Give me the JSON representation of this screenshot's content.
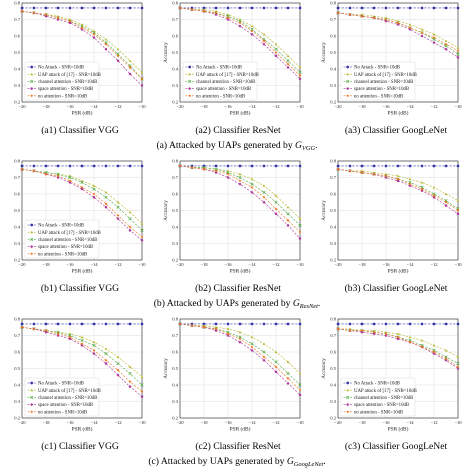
{
  "legend": [
    "No Attack - SNR=10dB",
    "UAP attack of [17] - SNR=10dB",
    "channel attention - SNR=10dB",
    "space attention - SNR=10dB",
    "no attention - SNR=10dB"
  ],
  "series_colors": [
    "#3333aa",
    "#b8b830",
    "#55aa44",
    "#aa3399",
    "#ee7722"
  ],
  "axes": {
    "xlabel": "PSR (dB)",
    "ylabel": "Accuracy",
    "xticks": [
      "−20",
      "−18",
      "−16",
      "−14",
      "−12",
      "−10"
    ],
    "yticks": [
      "0.8",
      "0.7",
      "0.6",
      "0.5",
      "0.4",
      "0.3",
      "0.2"
    ]
  },
  "rows": [
    {
      "caption_prefix": "(a) Attacked by UAPs generated by ",
      "caption_symbol": "G",
      "caption_sub": "VGG",
      "caption_suffix": "."
    },
    {
      "caption_prefix": "(b) Attacked by UAPs generated by ",
      "caption_symbol": "G",
      "caption_sub": "ResNet",
      "caption_suffix": "."
    },
    {
      "caption_prefix": "(c) Attacked by UAPs generated by ",
      "caption_symbol": "G",
      "caption_sub": "GoogLeNet",
      "caption_suffix": "."
    }
  ],
  "chart_data": [
    {
      "type": "line",
      "title": "(a1) Classifier VGG",
      "xlabel": "PSR (dB)",
      "ylabel": "",
      "xlim": [
        -20,
        -10
      ],
      "ylim": [
        0.2,
        0.8
      ],
      "show_legend": true,
      "x": [
        -20,
        -19,
        -18,
        -17,
        -16,
        -15,
        -14,
        -13,
        -12,
        -11,
        -10
      ],
      "series": [
        {
          "name": "No Attack - SNR=10dB",
          "values": [
            0.77,
            0.77,
            0.77,
            0.77,
            0.77,
            0.77,
            0.77,
            0.77,
            0.77,
            0.77,
            0.77
          ]
        },
        {
          "name": "UAP attack of [17] - SNR=10dB",
          "values": [
            0.75,
            0.74,
            0.73,
            0.72,
            0.7,
            0.67,
            0.63,
            0.58,
            0.52,
            0.45,
            0.38
          ]
        },
        {
          "name": "channel attention - SNR=10dB",
          "values": [
            0.75,
            0.74,
            0.73,
            0.71,
            0.69,
            0.66,
            0.62,
            0.56,
            0.49,
            0.42,
            0.34
          ]
        },
        {
          "name": "space attention - SNR=10dB",
          "values": [
            0.75,
            0.74,
            0.72,
            0.7,
            0.68,
            0.64,
            0.59,
            0.52,
            0.45,
            0.37,
            0.3
          ]
        },
        {
          "name": "no attention - SNR=10dB",
          "values": [
            0.75,
            0.74,
            0.73,
            0.71,
            0.69,
            0.65,
            0.61,
            0.55,
            0.48,
            0.41,
            0.34
          ]
        }
      ]
    },
    {
      "type": "line",
      "title": "(a2) Classifier ResNet",
      "xlabel": "PSR (dB)",
      "ylabel": "Accuracy",
      "xlim": [
        -20,
        -10
      ],
      "ylim": [
        0.2,
        0.8
      ],
      "show_legend": true,
      "x": [
        -20,
        -19,
        -18,
        -17,
        -16,
        -15,
        -14,
        -13,
        -12,
        -11,
        -10
      ],
      "series": [
        {
          "name": "No Attack - SNR=10dB",
          "values": [
            0.77,
            0.77,
            0.77,
            0.77,
            0.77,
            0.77,
            0.77,
            0.77,
            0.77,
            0.77,
            0.77
          ]
        },
        {
          "name": "UAP attack of [17] - SNR=10dB",
          "values": [
            0.77,
            0.76,
            0.76,
            0.75,
            0.73,
            0.7,
            0.66,
            0.61,
            0.55,
            0.48,
            0.41
          ]
        },
        {
          "name": "channel attention - SNR=10dB",
          "values": [
            0.77,
            0.76,
            0.75,
            0.74,
            0.72,
            0.69,
            0.64,
            0.58,
            0.52,
            0.45,
            0.38
          ]
        },
        {
          "name": "space attention - SNR=10dB",
          "values": [
            0.77,
            0.76,
            0.75,
            0.73,
            0.7,
            0.66,
            0.61,
            0.55,
            0.48,
            0.41,
            0.34
          ]
        },
        {
          "name": "no attention - SNR=10dB",
          "values": [
            0.77,
            0.76,
            0.75,
            0.74,
            0.71,
            0.68,
            0.63,
            0.57,
            0.5,
            0.43,
            0.36
          ]
        }
      ]
    },
    {
      "type": "line",
      "title": "(a3) Classifier GoogLeNet",
      "xlabel": "PSR (dB)",
      "ylabel": "Accuracy",
      "xlim": [
        -20,
        -10
      ],
      "ylim": [
        0.2,
        0.8
      ],
      "show_legend": true,
      "x": [
        -20,
        -19,
        -18,
        -17,
        -16,
        -15,
        -14,
        -13,
        -12,
        -11,
        -10
      ],
      "series": [
        {
          "name": "No Attack - SNR=10dB",
          "values": [
            0.77,
            0.77,
            0.77,
            0.77,
            0.77,
            0.77,
            0.77,
            0.77,
            0.77,
            0.77,
            0.77
          ]
        },
        {
          "name": "UAP attack of [17] - SNR=10dB",
          "values": [
            0.74,
            0.73,
            0.73,
            0.72,
            0.71,
            0.69,
            0.67,
            0.64,
            0.61,
            0.57,
            0.53
          ]
        },
        {
          "name": "channel attention - SNR=10dB",
          "values": [
            0.74,
            0.73,
            0.72,
            0.71,
            0.7,
            0.68,
            0.65,
            0.62,
            0.58,
            0.54,
            0.49
          ]
        },
        {
          "name": "space attention - SNR=10dB",
          "values": [
            0.74,
            0.73,
            0.72,
            0.71,
            0.69,
            0.67,
            0.64,
            0.6,
            0.56,
            0.52,
            0.47
          ]
        },
        {
          "name": "no attention - SNR=10dB",
          "values": [
            0.74,
            0.73,
            0.72,
            0.71,
            0.7,
            0.68,
            0.65,
            0.62,
            0.59,
            0.55,
            0.51
          ]
        }
      ]
    },
    {
      "type": "line",
      "title": "(b1) Classifier VGG",
      "xlabel": "PSR (dB)",
      "ylabel": "",
      "xlim": [
        -20,
        -10
      ],
      "ylim": [
        0.2,
        0.8
      ],
      "show_legend": true,
      "x": [
        -20,
        -19,
        -18,
        -17,
        -16,
        -15,
        -14,
        -13,
        -12,
        -11,
        -10
      ],
      "series": [
        {
          "name": "No Attack - SNR=10dB",
          "values": [
            0.77,
            0.77,
            0.77,
            0.77,
            0.77,
            0.77,
            0.77,
            0.77,
            0.77,
            0.77,
            0.77
          ]
        },
        {
          "name": "UAP attack of [17] - SNR=10dB",
          "values": [
            0.75,
            0.74,
            0.73,
            0.72,
            0.71,
            0.68,
            0.65,
            0.61,
            0.55,
            0.49,
            0.42
          ]
        },
        {
          "name": "channel attention - SNR=10dB",
          "values": [
            0.75,
            0.74,
            0.73,
            0.72,
            0.7,
            0.67,
            0.63,
            0.58,
            0.52,
            0.45,
            0.38
          ]
        },
        {
          "name": "space attention - SNR=10dB",
          "values": [
            0.75,
            0.74,
            0.72,
            0.7,
            0.67,
            0.63,
            0.58,
            0.52,
            0.45,
            0.38,
            0.32
          ]
        },
        {
          "name": "no attention - SNR=10dB",
          "values": [
            0.75,
            0.74,
            0.72,
            0.71,
            0.68,
            0.64,
            0.6,
            0.54,
            0.47,
            0.4,
            0.34
          ]
        }
      ]
    },
    {
      "type": "line",
      "title": "(b2) Classifier ResNet",
      "xlabel": "PSR (dB)",
      "ylabel": "Accuracy",
      "xlim": [
        -20,
        -10
      ],
      "ylim": [
        0.2,
        0.8
      ],
      "show_legend": false,
      "x": [
        -20,
        -19,
        -18,
        -17,
        -16,
        -15,
        -14,
        -13,
        -12,
        -11,
        -10
      ],
      "series": [
        {
          "name": "No Attack - SNR=10dB",
          "values": [
            0.77,
            0.77,
            0.77,
            0.77,
            0.77,
            0.77,
            0.77,
            0.77,
            0.77,
            0.77,
            0.77
          ]
        },
        {
          "name": "UAP attack of [17] - SNR=10dB",
          "values": [
            0.77,
            0.76,
            0.76,
            0.75,
            0.74,
            0.72,
            0.69,
            0.65,
            0.59,
            0.52,
            0.45
          ]
        },
        {
          "name": "channel attention - SNR=10dB",
          "values": [
            0.77,
            0.76,
            0.76,
            0.75,
            0.73,
            0.7,
            0.66,
            0.61,
            0.55,
            0.48,
            0.41
          ]
        },
        {
          "name": "space attention - SNR=10dB",
          "values": [
            0.77,
            0.76,
            0.75,
            0.73,
            0.7,
            0.66,
            0.61,
            0.55,
            0.48,
            0.41,
            0.33
          ]
        },
        {
          "name": "no attention - SNR=10dB",
          "values": [
            0.77,
            0.76,
            0.75,
            0.74,
            0.72,
            0.68,
            0.64,
            0.58,
            0.51,
            0.44,
            0.37
          ]
        }
      ]
    },
    {
      "type": "line",
      "title": "(b3) Classifier GoogLeNet",
      "xlabel": "PSR (dB)",
      "ylabel": "Accuracy",
      "xlim": [
        -20,
        -10
      ],
      "ylim": [
        0.2,
        0.8
      ],
      "show_legend": false,
      "x": [
        -20,
        -19,
        -18,
        -17,
        -16,
        -15,
        -14,
        -13,
        -12,
        -11,
        -10
      ],
      "series": [
        {
          "name": "No Attack - SNR=10dB",
          "values": [
            0.77,
            0.77,
            0.77,
            0.77,
            0.77,
            0.77,
            0.77,
            0.77,
            0.77,
            0.77,
            0.77
          ]
        },
        {
          "name": "UAP attack of [17] - SNR=10dB",
          "values": [
            0.75,
            0.74,
            0.74,
            0.73,
            0.72,
            0.71,
            0.69,
            0.67,
            0.64,
            0.6,
            0.56
          ]
        },
        {
          "name": "channel attention - SNR=10dB",
          "values": [
            0.75,
            0.74,
            0.73,
            0.72,
            0.71,
            0.69,
            0.67,
            0.64,
            0.6,
            0.56,
            0.51
          ]
        },
        {
          "name": "space attention - SNR=10dB",
          "values": [
            0.75,
            0.74,
            0.73,
            0.72,
            0.7,
            0.68,
            0.65,
            0.62,
            0.58,
            0.53,
            0.48
          ]
        },
        {
          "name": "no attention - SNR=10dB",
          "values": [
            0.75,
            0.74,
            0.73,
            0.72,
            0.71,
            0.69,
            0.66,
            0.63,
            0.59,
            0.55,
            0.5
          ]
        }
      ]
    },
    {
      "type": "line",
      "title": "(c1) Classifier VGG",
      "xlabel": "PSR (dB)",
      "ylabel": "",
      "xlim": [
        -20,
        -10
      ],
      "ylim": [
        0.2,
        0.8
      ],
      "show_legend": true,
      "x": [
        -20,
        -19,
        -18,
        -17,
        -16,
        -15,
        -14,
        -13,
        -12,
        -11,
        -10
      ],
      "series": [
        {
          "name": "No Attack - SNR=10dB",
          "values": [
            0.77,
            0.77,
            0.77,
            0.77,
            0.77,
            0.77,
            0.77,
            0.77,
            0.77,
            0.77,
            0.77
          ]
        },
        {
          "name": "UAP attack of [17] - SNR=10dB",
          "values": [
            0.75,
            0.74,
            0.73,
            0.72,
            0.71,
            0.69,
            0.66,
            0.62,
            0.57,
            0.51,
            0.45
          ]
        },
        {
          "name": "channel attention - SNR=10dB",
          "values": [
            0.75,
            0.74,
            0.73,
            0.72,
            0.7,
            0.67,
            0.64,
            0.59,
            0.53,
            0.47,
            0.4
          ]
        },
        {
          "name": "space attention - SNR=10dB",
          "values": [
            0.75,
            0.74,
            0.72,
            0.7,
            0.68,
            0.64,
            0.59,
            0.53,
            0.46,
            0.39,
            0.33
          ]
        },
        {
          "name": "no attention - SNR=10dB",
          "values": [
            0.75,
            0.74,
            0.73,
            0.71,
            0.69,
            0.65,
            0.61,
            0.55,
            0.49,
            0.42,
            0.36
          ]
        }
      ]
    },
    {
      "type": "line",
      "title": "(c2) Classifier ResNet",
      "xlabel": "PSR (dB)",
      "ylabel": "Accuracy",
      "xlim": [
        -20,
        -10
      ],
      "ylim": [
        0.2,
        0.8
      ],
      "show_legend": false,
      "x": [
        -20,
        -19,
        -18,
        -17,
        -16,
        -15,
        -14,
        -13,
        -12,
        -11,
        -10
      ],
      "series": [
        {
          "name": "No Attack - SNR=10dB",
          "values": [
            0.77,
            0.77,
            0.77,
            0.77,
            0.77,
            0.77,
            0.77,
            0.77,
            0.77,
            0.77,
            0.77
          ]
        },
        {
          "name": "UAP attack of [17] - SNR=10dB",
          "values": [
            0.77,
            0.76,
            0.76,
            0.75,
            0.74,
            0.72,
            0.69,
            0.65,
            0.6,
            0.54,
            0.47
          ]
        },
        {
          "name": "channel attention - SNR=10dB",
          "values": [
            0.77,
            0.76,
            0.75,
            0.74,
            0.72,
            0.69,
            0.65,
            0.6,
            0.54,
            0.47,
            0.4
          ]
        },
        {
          "name": "space attention - SNR=10dB",
          "values": [
            0.77,
            0.76,
            0.75,
            0.73,
            0.7,
            0.66,
            0.61,
            0.55,
            0.48,
            0.41,
            0.34
          ]
        },
        {
          "name": "no attention - SNR=10dB",
          "values": [
            0.77,
            0.76,
            0.75,
            0.74,
            0.71,
            0.68,
            0.63,
            0.57,
            0.51,
            0.44,
            0.37
          ]
        }
      ]
    },
    {
      "type": "line",
      "title": "(c3) Classifier GoogLeNet",
      "xlabel": "PSR (dB)",
      "ylabel": "Accuracy",
      "xlim": [
        -20,
        -10
      ],
      "ylim": [
        0.2,
        0.8
      ],
      "show_legend": true,
      "x": [
        -20,
        -19,
        -18,
        -17,
        -16,
        -15,
        -14,
        -13,
        -12,
        -11,
        -10
      ],
      "series": [
        {
          "name": "No Attack - SNR=10dB",
          "values": [
            0.77,
            0.77,
            0.77,
            0.77,
            0.77,
            0.77,
            0.77,
            0.77,
            0.77,
            0.77,
            0.77
          ]
        },
        {
          "name": "UAP attack of [17] - SNR=10dB",
          "values": [
            0.74,
            0.74,
            0.73,
            0.73,
            0.72,
            0.71,
            0.69,
            0.67,
            0.64,
            0.61,
            0.57
          ]
        },
        {
          "name": "channel attention - SNR=10dB",
          "values": [
            0.74,
            0.73,
            0.73,
            0.72,
            0.71,
            0.69,
            0.67,
            0.64,
            0.61,
            0.57,
            0.53
          ]
        },
        {
          "name": "space attention - SNR=10dB",
          "values": [
            0.74,
            0.73,
            0.72,
            0.71,
            0.7,
            0.68,
            0.66,
            0.63,
            0.59,
            0.55,
            0.5
          ]
        },
        {
          "name": "no attention - SNR=10dB",
          "values": [
            0.74,
            0.73,
            0.73,
            0.72,
            0.71,
            0.69,
            0.66,
            0.63,
            0.6,
            0.56,
            0.51
          ]
        }
      ]
    }
  ]
}
